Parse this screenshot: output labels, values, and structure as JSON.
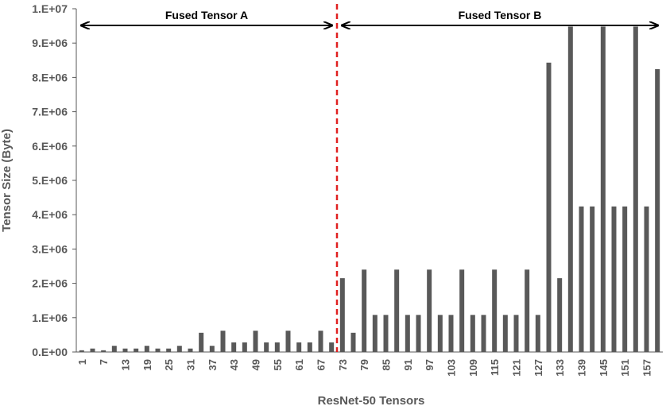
{
  "chart_data": {
    "type": "bar",
    "xlabel": "ResNet-50 Tensors",
    "ylabel": "Tensor Size (Byte)",
    "ylim": [
      0,
      10000000
    ],
    "yticks": [
      0,
      1000000,
      2000000,
      3000000,
      4000000,
      5000000,
      6000000,
      7000000,
      8000000,
      9000000,
      10000000
    ],
    "ytick_labels": [
      "0.E+00",
      "1.E+06",
      "2.E+06",
      "3.E+06",
      "4.E+06",
      "5.E+06",
      "6.E+06",
      "7.E+06",
      "8.E+06",
      "9.E+06",
      "1.E+07"
    ],
    "xtick_labels": [
      "1",
      "7",
      "13",
      "19",
      "25",
      "31",
      "37",
      "43",
      "49",
      "55",
      "61",
      "67",
      "73",
      "79",
      "85",
      "91",
      "97",
      "103",
      "109",
      "115",
      "121",
      "127",
      "133",
      "139",
      "145",
      "151",
      "157"
    ],
    "x_first": 1,
    "x_step": 3,
    "values": [
      50000,
      100000,
      50000,
      180000,
      100000,
      100000,
      180000,
      100000,
      100000,
      180000,
      100000,
      560000,
      180000,
      620000,
      280000,
      280000,
      620000,
      280000,
      280000,
      620000,
      280000,
      280000,
      620000,
      280000,
      2150000,
      560000,
      2400000,
      1080000,
      1080000,
      2400000,
      1080000,
      1080000,
      2400000,
      1080000,
      1080000,
      2400000,
      1080000,
      1080000,
      2400000,
      1080000,
      1080000,
      2400000,
      1080000,
      8430000,
      2150000,
      9480000,
      4240000,
      4240000,
      9480000,
      4240000,
      4240000,
      9480000,
      4240000,
      8240000
    ],
    "bar_color": "#595959",
    "grid": false,
    "legend": "none",
    "divider_after_index": 23,
    "divider_color": "#e02020",
    "annotations": [
      {
        "text": "Fused Tensor A",
        "from_index": 0,
        "to_index": 23
      },
      {
        "text": "Fused Tensor B",
        "from_index": 24,
        "to_index": 53
      }
    ]
  }
}
